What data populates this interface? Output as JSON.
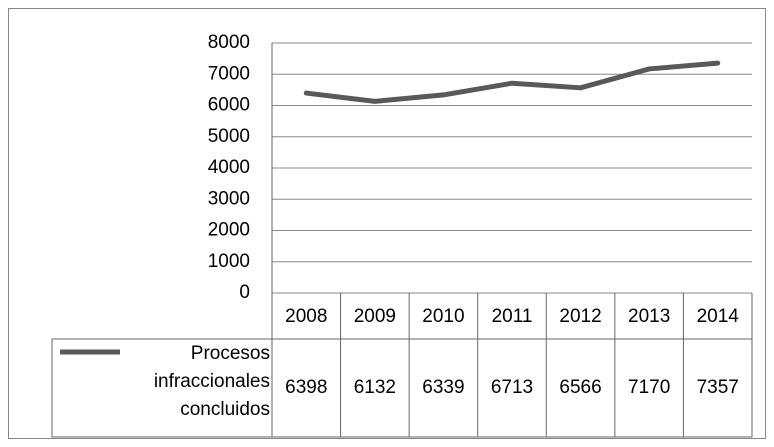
{
  "chart_data": {
    "type": "line",
    "categories": [
      "2008",
      "2009",
      "2010",
      "2011",
      "2012",
      "2013",
      "2014"
    ],
    "series": [
      {
        "name": "Procesos infraccionales concluidos",
        "color": "#595959",
        "values": [
          6398,
          6132,
          6339,
          6713,
          6566,
          7170,
          7357
        ]
      }
    ],
    "ylim": [
      0,
      8000
    ],
    "yticks": [
      0,
      1000,
      2000,
      3000,
      4000,
      5000,
      6000,
      7000,
      8000
    ],
    "grid": true,
    "data_table": true
  }
}
